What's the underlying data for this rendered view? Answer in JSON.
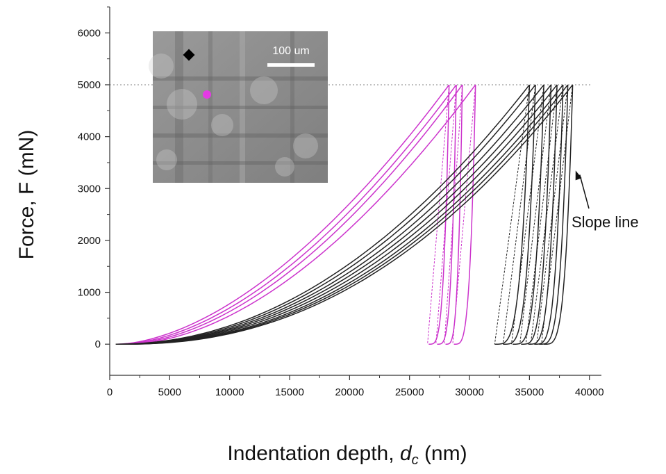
{
  "chart_data": {
    "type": "line",
    "title": "",
    "xlabel_main": "Indentation depth, ",
    "xlabel_var": "d",
    "xlabel_sub": "c",
    "xlabel_unit": " (nm)",
    "ylabel": "Force, F (mN)",
    "xlim": [
      0,
      41000
    ],
    "ylim": [
      -600,
      6500
    ],
    "x_ticks": [
      0,
      5000,
      10000,
      15000,
      20000,
      25000,
      30000,
      35000,
      40000
    ],
    "y_ticks": [
      0,
      1000,
      2000,
      3000,
      4000,
      5000,
      6000
    ],
    "reference_line": {
      "y": 5000,
      "style": "dotted"
    },
    "annotation": {
      "text": "Slope line",
      "points_to": [
        38500,
        3400
      ]
    },
    "inset": {
      "scale_bar_label": "100 um"
    },
    "colors": {
      "magenta": "#cc33cc",
      "black": "#222222"
    },
    "series": [
      {
        "color": "magenta",
        "loading": {
          "start": 600,
          "peak": 28300,
          "exp": 1.72
        },
        "unloading": {
          "peak": 28300,
          "final": 26600,
          "exp": 4.0
        },
        "slope": {
          "from": 28300,
          "to": 26500
        }
      },
      {
        "color": "magenta",
        "loading": {
          "start": 900,
          "peak": 28900,
          "exp": 1.75
        },
        "unloading": {
          "peak": 28900,
          "final": 27300,
          "exp": 4.0
        },
        "slope": {
          "from": 28900,
          "to": 27200
        }
      },
      {
        "color": "magenta",
        "loading": {
          "start": 1200,
          "peak": 29400,
          "exp": 1.78
        },
        "unloading": {
          "peak": 29400,
          "final": 28000,
          "exp": 4.0
        },
        "slope": {
          "from": 29400,
          "to": 27900
        }
      },
      {
        "color": "magenta",
        "loading": {
          "start": 1500,
          "peak": 30500,
          "exp": 1.8
        },
        "unloading": {
          "peak": 30500,
          "final": 28700,
          "exp": 4.0
        },
        "slope": {
          "from": 30500,
          "to": 28600
        }
      },
      {
        "color": "black",
        "loading": {
          "start": 500,
          "peak": 35000,
          "exp": 2.05
        },
        "unloading": {
          "peak": 35000,
          "final": 32100,
          "exp": 4.0
        },
        "slope": {
          "from": 35000,
          "to": 32100
        }
      },
      {
        "color": "black",
        "loading": {
          "start": 600,
          "peak": 35500,
          "exp": 2.08
        },
        "unloading": {
          "peak": 35500,
          "final": 32800,
          "exp": 4.0
        },
        "slope": {
          "from": 35500,
          "to": 32800
        }
      },
      {
        "color": "black",
        "loading": {
          "start": 700,
          "peak": 36200,
          "exp": 2.1
        },
        "unloading": {
          "peak": 36200,
          "final": 33600,
          "exp": 4.0
        },
        "slope": {
          "from": 36200,
          "to": 33500
        }
      },
      {
        "color": "black",
        "loading": {
          "start": 800,
          "peak": 36800,
          "exp": 2.12
        },
        "unloading": {
          "peak": 36800,
          "final": 34300,
          "exp": 4.0
        },
        "slope": {
          "from": 36800,
          "to": 34200
        }
      },
      {
        "color": "black",
        "loading": {
          "start": 900,
          "peak": 37300,
          "exp": 2.15
        },
        "unloading": {
          "peak": 37300,
          "final": 34900,
          "exp": 4.0
        },
        "slope": {
          "from": 37300,
          "to": 34700
        }
      },
      {
        "color": "black",
        "loading": {
          "start": 1000,
          "peak": 37800,
          "exp": 2.18
        },
        "unloading": {
          "peak": 37800,
          "final": 35400,
          "exp": 4.0
        },
        "slope": {
          "from": 37800,
          "to": 35100
        }
      },
      {
        "color": "black",
        "loading": {
          "start": 1100,
          "peak": 38200,
          "exp": 2.2
        },
        "unloading": {
          "peak": 38200,
          "final": 35800,
          "exp": 4.0
        },
        "slope": {
          "from": 38200,
          "to": 35600
        }
      },
      {
        "color": "black",
        "loading": {
          "start": 1200,
          "peak": 38600,
          "exp": 2.22
        },
        "unloading": {
          "peak": 38600,
          "final": 36200,
          "exp": 4.0
        },
        "slope": {
          "from": 38600,
          "to": 36000
        }
      }
    ]
  }
}
